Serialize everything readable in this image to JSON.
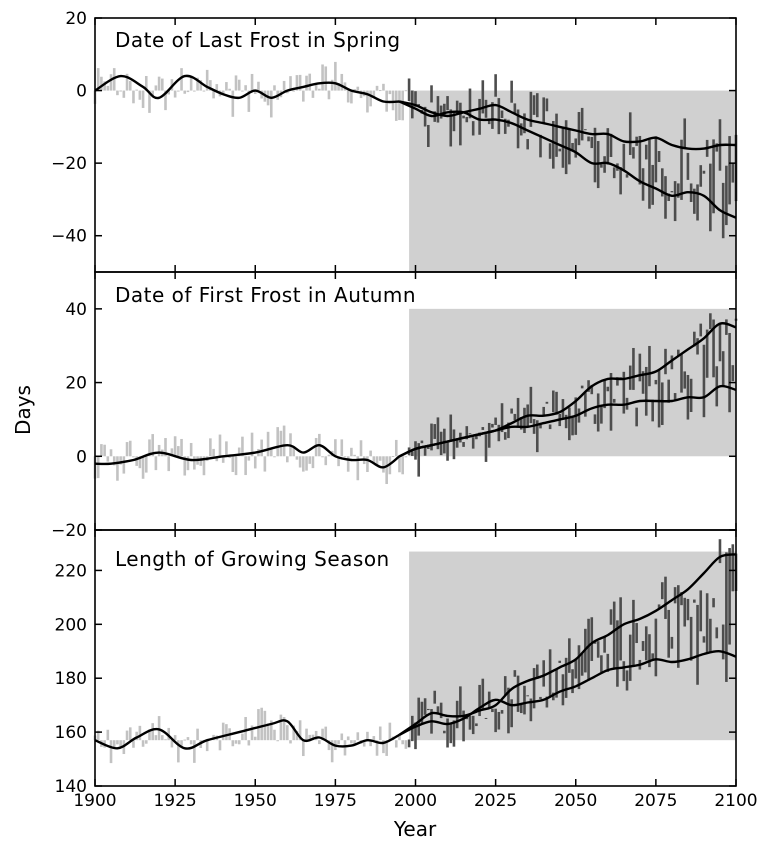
{
  "figure": {
    "ylabel": "Days",
    "xlabel": "Year",
    "x_ticks": [
      1900,
      1925,
      1950,
      1975,
      2000,
      2025,
      2050,
      2075,
      2100
    ],
    "colors": {
      "observed_bar": "#c2c2c2",
      "projected_bar": "#4d4d4d",
      "projection_band": "#d0d0d0",
      "smooth_line": "#000000",
      "frame": "#000000"
    }
  },
  "chart_data": [
    {
      "type": "bar",
      "title": "Date of Last Frost in Spring",
      "xlim": [
        1900,
        2100
      ],
      "ylim": [
        -50,
        20
      ],
      "y_ticks": [
        20,
        0,
        -20,
        -40
      ],
      "shaded_band": {
        "x_start": 1998,
        "x_end": 2100,
        "y_from": 0,
        "y_to": -50
      },
      "observed_trend": {
        "x": [
          1900,
          1908,
          1915,
          1920,
          1928,
          1935,
          1940,
          1945,
          1950,
          1955,
          1960,
          1965,
          1970,
          1975,
          1980,
          1985,
          1990,
          1995
        ],
        "y": [
          0,
          4,
          1,
          -2,
          4,
          1,
          -1,
          -2,
          0,
          -2,
          0,
          1,
          2,
          2,
          0,
          -1,
          -3,
          -3
        ]
      },
      "projection_high": {
        "x": [
          1995,
          2000,
          2005,
          2010,
          2015,
          2020,
          2025,
          2030,
          2035,
          2040,
          2045,
          2050,
          2055,
          2060,
          2065,
          2070,
          2075,
          2080,
          2085,
          2090,
          2095,
          2100
        ],
        "y": [
          -3,
          -4,
          -6,
          -7,
          -6,
          -5,
          -4,
          -6,
          -8,
          -9,
          -10,
          -11,
          -12,
          -12,
          -14,
          -14,
          -13,
          -15,
          -16,
          -16,
          -15,
          -15
        ]
      },
      "projection_low": {
        "x": [
          1995,
          2000,
          2005,
          2010,
          2015,
          2020,
          2025,
          2030,
          2035,
          2040,
          2045,
          2050,
          2055,
          2060,
          2065,
          2070,
          2075,
          2080,
          2085,
          2090,
          2095,
          2100
        ],
        "y": [
          -3,
          -5,
          -7,
          -6,
          -6,
          -8,
          -8,
          -9,
          -11,
          -13,
          -15,
          -17,
          -20,
          -20,
          -22,
          -25,
          -27,
          -29,
          -28,
          -29,
          -33,
          -35
        ]
      },
      "annual_observed": {
        "x_start": 1900,
        "x_end": 1997,
        "amplitude": 6
      },
      "annual_projected": {
        "x_start": 1998,
        "x_end": 2100,
        "amplitude": 9
      }
    },
    {
      "type": "bar",
      "title": "Date of First Frost in Autumn",
      "xlim": [
        1900,
        2100
      ],
      "ylim": [
        -20,
        50
      ],
      "y_ticks": [
        40,
        20,
        0,
        -20
      ],
      "shaded_band": {
        "x_start": 1998,
        "x_end": 2100,
        "y_from": 0,
        "y_to": 40
      },
      "observed_trend": {
        "x": [
          1900,
          1905,
          1912,
          1920,
          1930,
          1940,
          1950,
          1960,
          1965,
          1970,
          1975,
          1980,
          1985,
          1990,
          1995
        ],
        "y": [
          -2,
          -2,
          -1,
          1,
          -1,
          0,
          1,
          3,
          1,
          3,
          0,
          -1,
          -1,
          -3,
          0
        ]
      },
      "projection_high": {
        "x": [
          1995,
          2000,
          2005,
          2010,
          2020,
          2025,
          2030,
          2035,
          2040,
          2045,
          2050,
          2055,
          2060,
          2065,
          2070,
          2075,
          2080,
          2085,
          2090,
          2095,
          2100
        ],
        "y": [
          0,
          2,
          3,
          4,
          6,
          7,
          9,
          11,
          11,
          12,
          15,
          19,
          21,
          21,
          22,
          23,
          26,
          29,
          32,
          36,
          35
        ]
      },
      "projection_low": {
        "x": [
          1995,
          2000,
          2005,
          2010,
          2020,
          2025,
          2030,
          2035,
          2040,
          2045,
          2050,
          2055,
          2060,
          2065,
          2070,
          2075,
          2080,
          2085,
          2090,
          2095,
          2100
        ],
        "y": [
          0,
          2,
          3,
          4,
          6,
          7,
          8,
          8,
          9,
          10,
          11,
          13,
          14,
          14,
          15,
          15,
          15,
          16,
          16,
          19,
          18
        ]
      },
      "annual_observed": {
        "x_start": 1900,
        "x_end": 1997,
        "amplitude": 6
      },
      "annual_projected": {
        "x_start": 1998,
        "x_end": 2100,
        "amplitude": 8
      }
    },
    {
      "type": "bar",
      "title": "Length of Growing Season",
      "xlim": [
        1900,
        2100
      ],
      "ylim": [
        140,
        235
      ],
      "y_ticks": [
        220,
        200,
        180,
        160,
        140
      ],
      "shaded_band": {
        "x_start": 1998,
        "x_end": 2100,
        "y_from": 157,
        "y_to": 227
      },
      "observed_trend": {
        "x": [
          1900,
          1907,
          1913,
          1920,
          1928,
          1935,
          1945,
          1955,
          1960,
          1965,
          1970,
          1975,
          1980,
          1985,
          1990,
          1995
        ],
        "y": [
          157,
          154,
          158,
          161,
          154,
          157,
          160,
          163,
          164,
          157,
          158,
          155,
          155,
          157,
          156,
          159
        ]
      },
      "projection_high": {
        "x": [
          1995,
          2000,
          2005,
          2010,
          2015,
          2020,
          2025,
          2030,
          2035,
          2040,
          2045,
          2050,
          2055,
          2060,
          2065,
          2070,
          2075,
          2080,
          2085,
          2090,
          2095,
          2100
        ],
        "y": [
          159,
          163,
          167,
          166,
          166,
          168,
          170,
          176,
          179,
          181,
          184,
          187,
          193,
          196,
          200,
          202,
          205,
          209,
          213,
          219,
          225,
          226
        ]
      },
      "projection_low": {
        "x": [
          1995,
          2000,
          2005,
          2010,
          2015,
          2020,
          2025,
          2030,
          2035,
          2040,
          2045,
          2050,
          2055,
          2060,
          2065,
          2070,
          2075,
          2080,
          2085,
          2090,
          2095,
          2100
        ],
        "y": [
          159,
          162,
          164,
          163,
          165,
          169,
          172,
          170,
          171,
          172,
          175,
          177,
          180,
          183,
          184,
          185,
          187,
          186,
          187,
          189,
          190,
          188
        ]
      },
      "annual_observed": {
        "x_start": 1900,
        "x_end": 1997,
        "amplitude": 7
      },
      "annual_projected": {
        "x_start": 1998,
        "x_end": 2100,
        "amplitude": 11
      }
    }
  ]
}
